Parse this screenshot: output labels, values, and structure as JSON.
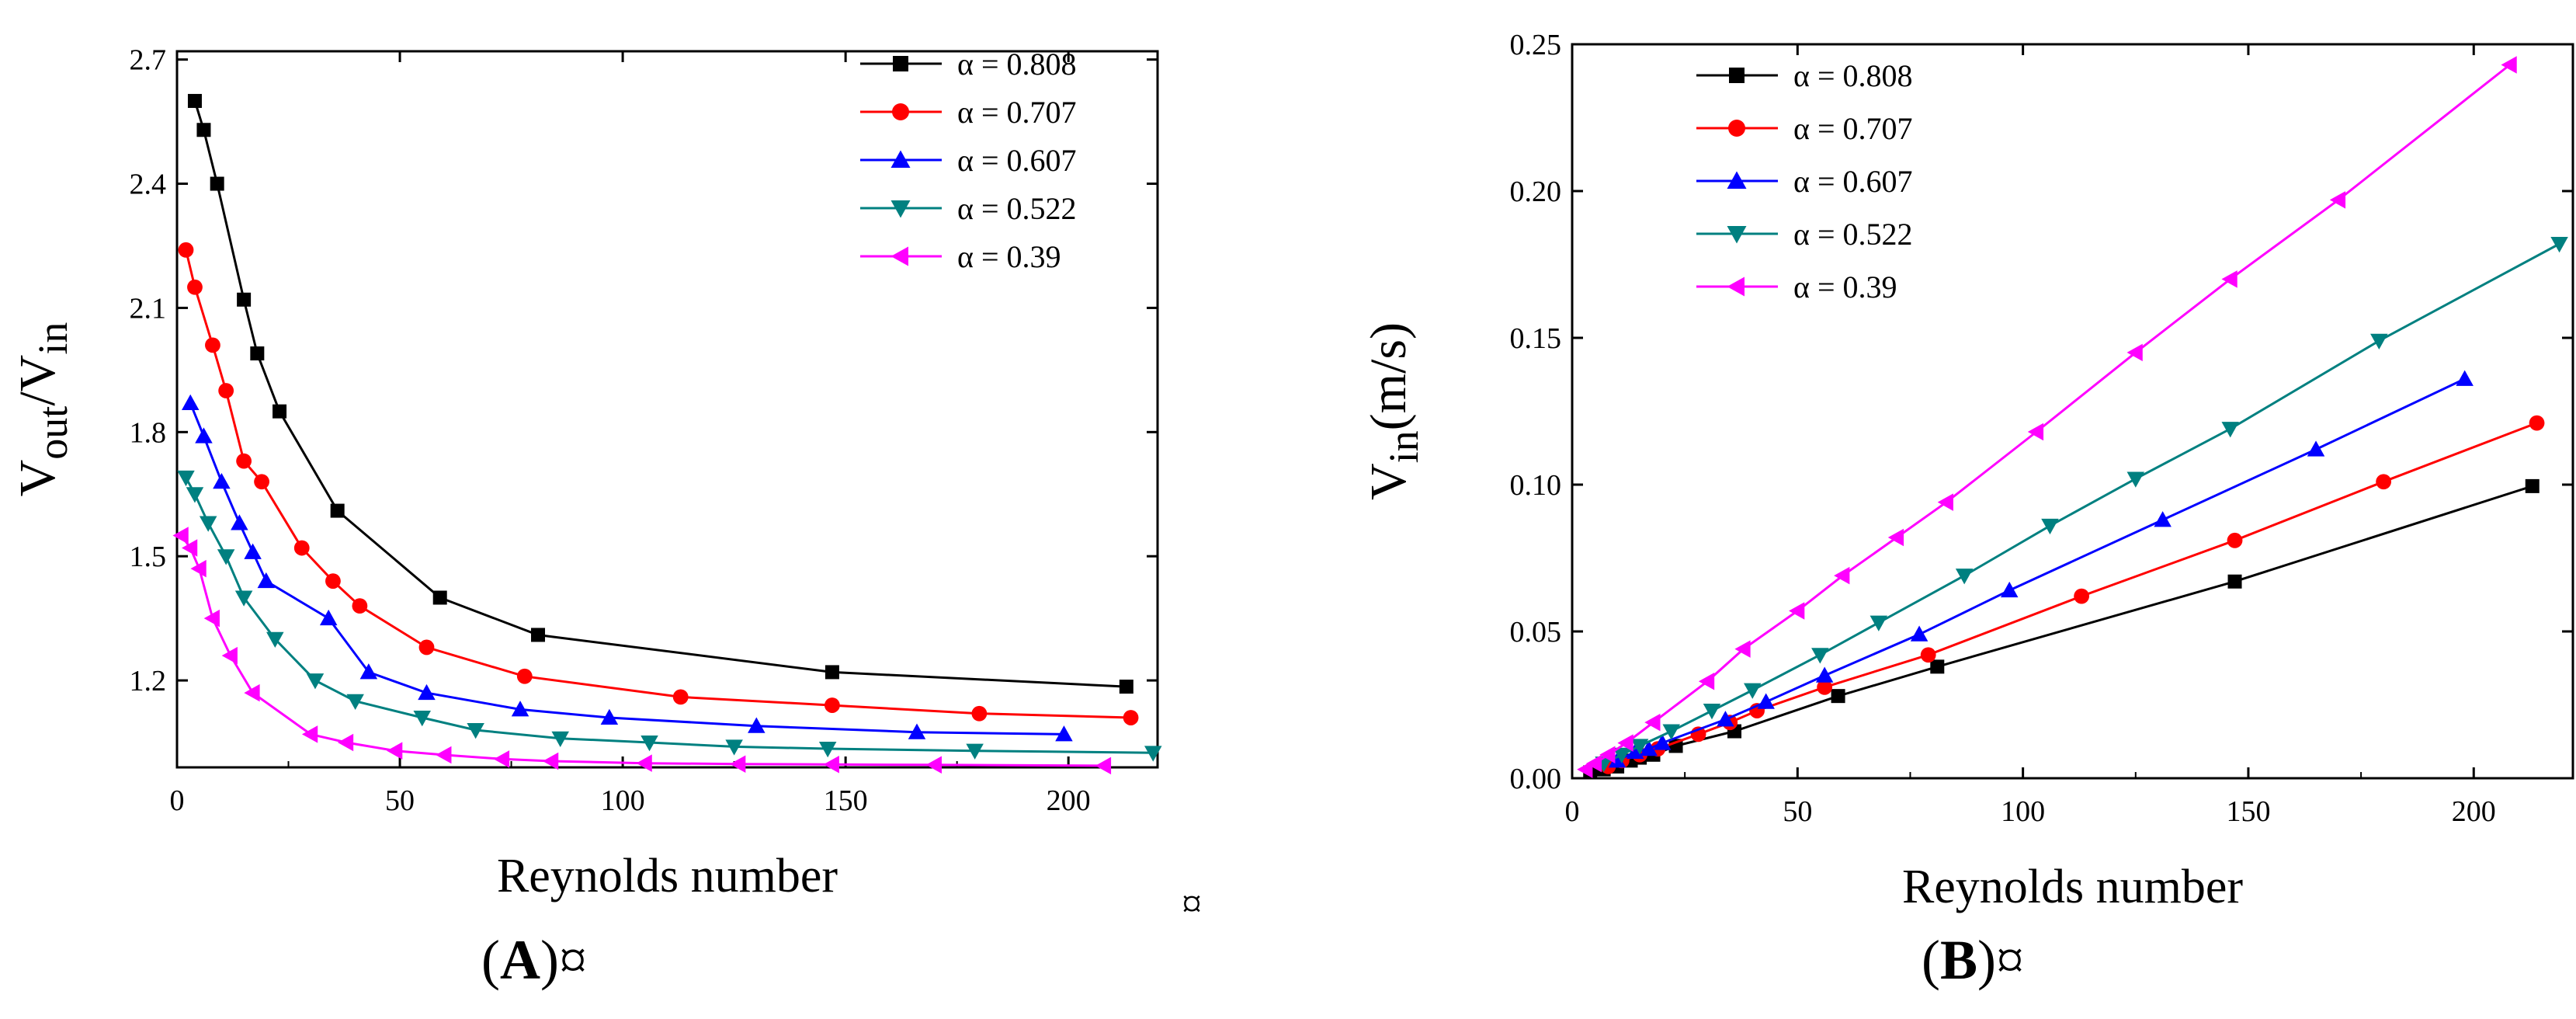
{
  "figure": {
    "panel_a_caption": "(A)¤",
    "panel_a_caption_parts": [
      "(",
      "A",
      ")¤"
    ],
    "panel_b_caption": "(B)¤",
    "panel_b_caption_parts": [
      "(",
      "B",
      ")¤"
    ],
    "separator_mark": "¤"
  },
  "chart_data": [
    {
      "id": "A",
      "type": "line",
      "xlabel": "Reynolds number",
      "ylabel": "Vout/Vin",
      "ylabel_parts": {
        "v1": "V",
        "sub1": "out",
        "slash": "/",
        "v2": "V",
        "sub2": "in"
      },
      "xlim": [
        0,
        220
      ],
      "ylim": [
        0.99,
        2.72
      ],
      "xticks": [
        0,
        50,
        100,
        150,
        200
      ],
      "xtick_labels": [
        "0",
        "50",
        "100",
        "150",
        "200"
      ],
      "yticks": [
        1.2,
        1.5,
        1.8,
        2.1,
        2.4,
        2.7
      ],
      "ytick_labels": [
        "1.2",
        "1.5",
        "1.8",
        "2.1",
        "2.4",
        "2.7"
      ],
      "legend_position": "top-right",
      "series": [
        {
          "name": "α = 0.808",
          "color": "#000000",
          "marker": "square",
          "x": [
            4,
            6,
            9,
            15,
            18,
            23,
            36,
            59,
            81,
            147,
            213
          ],
          "y": [
            2.6,
            2.53,
            2.4,
            2.12,
            1.99,
            1.85,
            1.61,
            1.4,
            1.31,
            1.22,
            1.185
          ]
        },
        {
          "name": "α = 0.707",
          "color": "#ff0000",
          "marker": "circle",
          "x": [
            2,
            4,
            8,
            11,
            15,
            19,
            28,
            35,
            41,
            56,
            78,
            113,
            147,
            180,
            214
          ],
          "y": [
            2.24,
            2.15,
            2.01,
            1.9,
            1.73,
            1.68,
            1.52,
            1.44,
            1.38,
            1.28,
            1.21,
            1.16,
            1.14,
            1.12,
            1.11
          ]
        },
        {
          "name": "α = 0.607",
          "color": "#0000ff",
          "marker": "triangle-up",
          "x": [
            3,
            6,
            10,
            14,
            17,
            20,
            34,
            43,
            56,
            77,
            97,
            130,
            166,
            199
          ],
          "y": [
            1.87,
            1.79,
            1.68,
            1.58,
            1.51,
            1.44,
            1.35,
            1.22,
            1.17,
            1.13,
            1.11,
            1.09,
            1.075,
            1.07
          ]
        },
        {
          "name": "α = 0.522",
          "color": "#008080",
          "marker": "triangle-down",
          "x": [
            2,
            4,
            7,
            11,
            15,
            22,
            31,
            40,
            55,
            67,
            86,
            106,
            125,
            146,
            179,
            219
          ],
          "y": [
            1.69,
            1.65,
            1.58,
            1.5,
            1.4,
            1.3,
            1.2,
            1.15,
            1.11,
            1.08,
            1.06,
            1.05,
            1.04,
            1.035,
            1.03,
            1.025
          ]
        },
        {
          "name": "α = 0.39",
          "color": "#ff00ff",
          "marker": "triangle-left",
          "x": [
            1,
            3,
            5,
            8,
            12,
            17,
            30,
            38,
            49,
            60,
            73,
            84,
            105,
            126,
            147,
            170,
            208
          ],
          "y": [
            1.55,
            1.52,
            1.47,
            1.35,
            1.26,
            1.17,
            1.07,
            1.05,
            1.03,
            1.02,
            1.01,
            1.005,
            1.0,
            0.998,
            0.997,
            0.996,
            0.994
          ]
        }
      ]
    },
    {
      "id": "B",
      "type": "line",
      "xlabel": "Reynolds number",
      "ylabel": "Vin(m/s)",
      "ylabel_parts": {
        "v": "V",
        "sub": "in",
        "unit": "(m/s)"
      },
      "xlim": [
        0,
        222
      ],
      "ylim": [
        0,
        0.25
      ],
      "xticks": [
        0,
        50,
        100,
        150,
        200
      ],
      "xtick_labels": [
        "0",
        "50",
        "100",
        "150",
        "200"
      ],
      "yticks": [
        0,
        0.05,
        0.1,
        0.15,
        0.2,
        0.25
      ],
      "ytick_labels": [
        "0.00",
        "0.05",
        "0.10",
        "0.15",
        "0.20",
        "0.25"
      ],
      "legend_position": "top-left",
      "series": [
        {
          "name": "α = 0.808",
          "color": "#000000",
          "marker": "square",
          "x": [
            4,
            7,
            10,
            13,
            15,
            18,
            23,
            36,
            59,
            81,
            147,
            213
          ],
          "y": [
            0.002,
            0.003,
            0.004,
            0.006,
            0.007,
            0.008,
            0.011,
            0.016,
            0.028,
            0.038,
            0.067,
            0.0995
          ]
        },
        {
          "name": "α = 0.707",
          "color": "#ff0000",
          "marker": "circle",
          "x": [
            8,
            11,
            15,
            19,
            28,
            35,
            41,
            56,
            79,
            113,
            147,
            180,
            214
          ],
          "y": [
            0.004,
            0.006,
            0.008,
            0.01,
            0.015,
            0.019,
            0.023,
            0.031,
            0.042,
            0.062,
            0.081,
            0.101,
            0.121
          ]
        },
        {
          "name": "α = 0.607",
          "color": "#0000ff",
          "marker": "triangle-up",
          "x": [
            10,
            14,
            17,
            20,
            34,
            43,
            56,
            77,
            97,
            131,
            165,
            198
          ],
          "y": [
            0.006,
            0.009,
            0.01,
            0.012,
            0.02,
            0.026,
            0.035,
            0.049,
            0.064,
            0.088,
            0.112,
            0.136
          ]
        },
        {
          "name": "α = 0.522",
          "color": "#008080",
          "marker": "triangle-down",
          "x": [
            7,
            11,
            15,
            22,
            31,
            40,
            55,
            68,
            87,
            106,
            125,
            146,
            179,
            219
          ],
          "y": [
            0.005,
            0.008,
            0.011,
            0.016,
            0.023,
            0.03,
            0.042,
            0.053,
            0.069,
            0.086,
            0.102,
            0.119,
            0.149,
            0.182
          ]
        },
        {
          "name": "α = 0.39",
          "color": "#ff00ff",
          "marker": "triangle-left",
          "x": [
            3,
            5,
            8,
            12,
            18,
            30,
            38,
            50,
            60,
            72,
            83,
            103,
            125,
            146,
            170,
            208
          ],
          "y": [
            0.003,
            0.005,
            0.008,
            0.012,
            0.019,
            0.033,
            0.044,
            0.057,
            0.069,
            0.082,
            0.094,
            0.118,
            0.145,
            0.17,
            0.197,
            0.243
          ]
        }
      ]
    }
  ]
}
